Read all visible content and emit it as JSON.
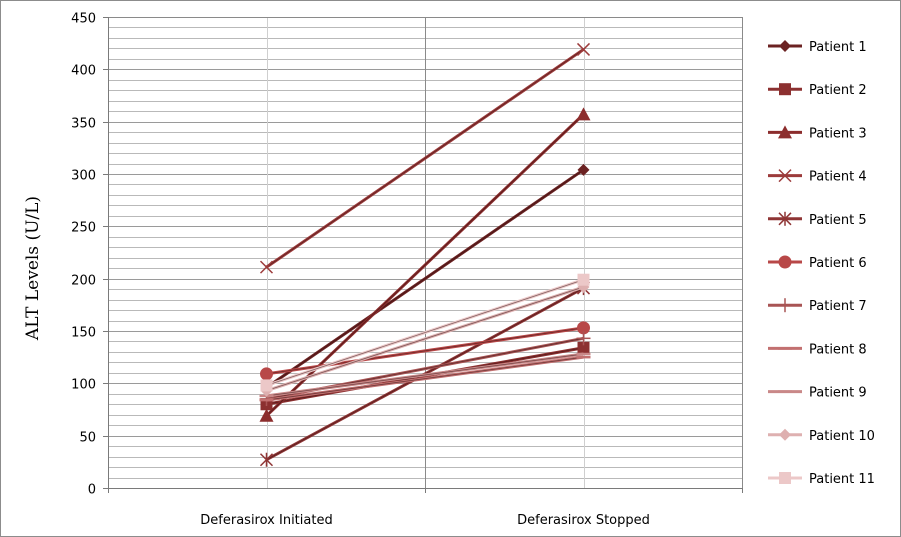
{
  "chart_data": {
    "type": "line",
    "title": "",
    "xlabel": "",
    "ylabel": "ALT Levels (U/L)",
    "categories": [
      "Deferasirox Initiated",
      "Deferasirox Stopped"
    ],
    "ylim": [
      0,
      450
    ],
    "ytick_step": 50,
    "minor_grid_step": 10,
    "grid": true,
    "legend_position": "right",
    "series": [
      {
        "name": "Patient 1",
        "values": [
          96,
          304
        ],
        "color": "#6b2222",
        "marker": "diamond"
      },
      {
        "name": "Patient 2",
        "values": [
          80,
          134
        ],
        "color": "#8c3030",
        "marker": "square"
      },
      {
        "name": "Patient 3",
        "values": [
          69,
          357
        ],
        "color": "#8c2d2d",
        "marker": "triangle"
      },
      {
        "name": "Patient 4",
        "values": [
          211,
          419
        ],
        "color": "#9c3b3b",
        "marker": "x"
      },
      {
        "name": "Patient 5",
        "values": [
          27,
          191
        ],
        "color": "#8f3535",
        "marker": "star"
      },
      {
        "name": "Patient 6",
        "values": [
          109,
          153
        ],
        "color": "#b84848",
        "marker": "circle"
      },
      {
        "name": "Patient 7",
        "values": [
          85,
          143
        ],
        "color": "#a85454",
        "marker": "plus"
      },
      {
        "name": "Patient 8",
        "values": [
          84,
          125
        ],
        "color": "#c27070",
        "marker": "dash"
      },
      {
        "name": "Patient 9",
        "values": [
          88,
          128
        ],
        "color": "#c98888",
        "marker": "dash"
      },
      {
        "name": "Patient 10",
        "values": [
          93,
          192
        ],
        "color": "#deb0b0",
        "marker": "diamond"
      },
      {
        "name": "Patient 11",
        "values": [
          98,
          199
        ],
        "color": "#ecc8c8",
        "marker": "square"
      }
    ]
  }
}
